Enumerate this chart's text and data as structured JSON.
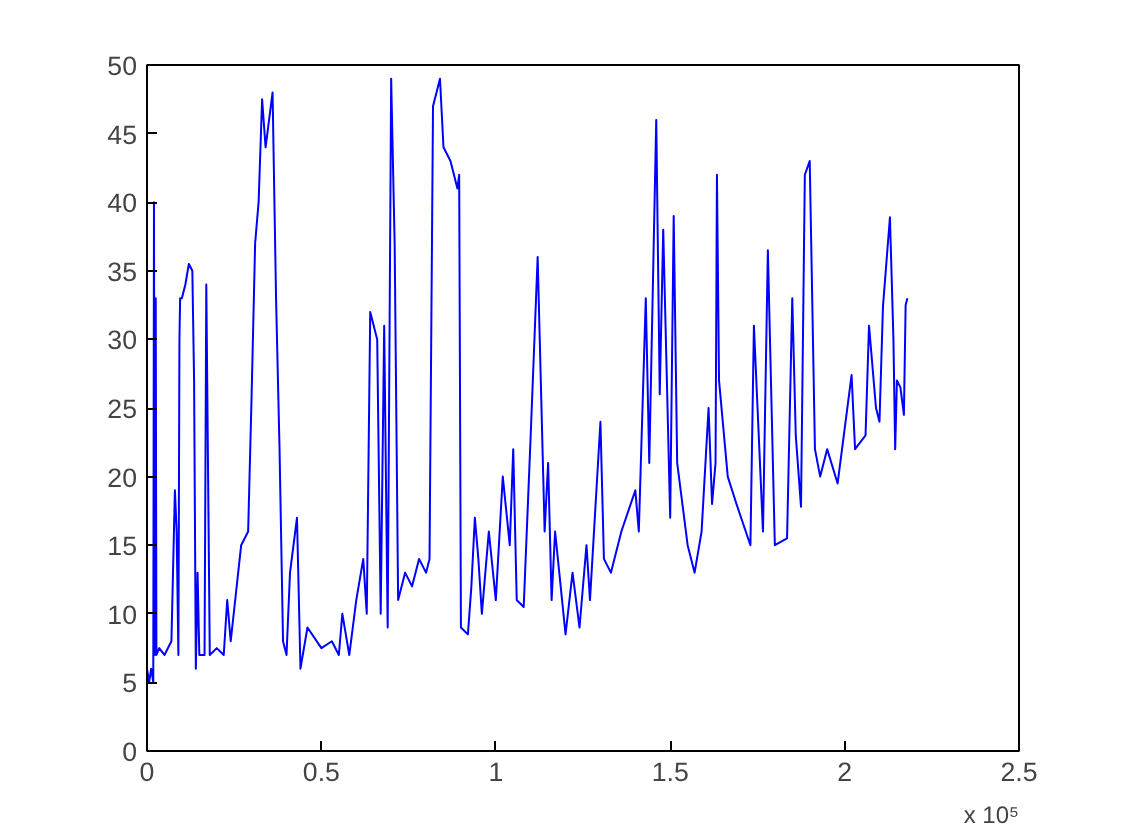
{
  "chart_data": {
    "type": "line",
    "xlim": [
      0,
      2.5
    ],
    "ylim": [
      0,
      50
    ],
    "xticks": [
      0,
      0.5,
      1,
      1.5,
      2,
      2.5
    ],
    "yticks": [
      0,
      5,
      10,
      15,
      20,
      25,
      30,
      35,
      40,
      45,
      50
    ],
    "grid": false,
    "line_style": "solid",
    "marker": "none",
    "annotations": [
      "x 10⁵"
    ],
    "series": [
      {
        "color": "#0000ff",
        "x": [
          0,
          0.006,
          0.012,
          0.018,
          0.02,
          0.022,
          0.025,
          0.027,
          0.035,
          0.05,
          0.07,
          0.08,
          0.085,
          0.09,
          0.093,
          0.095,
          0.1,
          0.11,
          0.12,
          0.13,
          0.135,
          0.14,
          0.145,
          0.15,
          0.165,
          0.17,
          0.18,
          0.2,
          0.22,
          0.23,
          0.24,
          0.27,
          0.29,
          0.3,
          0.31,
          0.32,
          0.33,
          0.34,
          0.36,
          0.37,
          0.38,
          0.39,
          0.4,
          0.41,
          0.43,
          0.44,
          0.46,
          0.5,
          0.53,
          0.55,
          0.56,
          0.58,
          0.6,
          0.62,
          0.63,
          0.64,
          0.66,
          0.67,
          0.68,
          0.69,
          0.7,
          0.71,
          0.72,
          0.74,
          0.76,
          0.78,
          0.8,
          0.81,
          0.82,
          0.84,
          0.85,
          0.87,
          0.89,
          0.895,
          0.9,
          0.92,
          0.93,
          0.94,
          0.95,
          0.96,
          0.98,
          1.0,
          1.02,
          1.04,
          1.05,
          1.06,
          1.08,
          1.1,
          1.12,
          1.13,
          1.14,
          1.15,
          1.16,
          1.17,
          1.2,
          1.22,
          1.24,
          1.26,
          1.27,
          1.3,
          1.31,
          1.33,
          1.36,
          1.4,
          1.41,
          1.43,
          1.44,
          1.46,
          1.47,
          1.48,
          1.5,
          1.51,
          1.52,
          1.55,
          1.57,
          1.59,
          1.61,
          1.62,
          1.63,
          1.634,
          1.64,
          1.665,
          1.69,
          1.73,
          1.74,
          1.766,
          1.78,
          1.8,
          1.835,
          1.85,
          1.86,
          1.875,
          1.886,
          1.9,
          1.915,
          1.93,
          1.95,
          1.98,
          2.02,
          2.03,
          2.06,
          2.07,
          2.09,
          2.1,
          2.11,
          2.13,
          2.14,
          2.145,
          2.15,
          2.16,
          2.17,
          2.175,
          2.18
        ],
        "values": [
          6,
          5,
          6,
          5,
          40,
          7,
          33,
          7,
          7.5,
          7,
          8,
          19,
          16,
          7,
          30,
          33,
          33,
          34,
          35.5,
          35,
          27,
          6,
          13,
          7,
          7,
          34,
          7,
          7.5,
          7,
          11,
          8,
          15,
          16,
          26,
          37,
          40,
          47.5,
          44,
          48,
          33,
          22,
          8,
          7,
          13,
          17,
          6,
          9,
          7.5,
          8,
          7,
          10,
          7,
          11,
          14,
          10,
          32,
          30,
          10,
          31,
          9,
          49,
          37,
          11,
          13,
          12,
          14,
          13,
          14,
          47,
          49,
          44,
          43,
          41,
          42,
          9,
          8.5,
          12,
          17,
          14,
          10,
          16,
          11,
          20,
          15,
          22,
          11,
          10.5,
          23,
          36,
          26,
          16,
          21,
          11,
          16,
          8.5,
          13,
          9,
          15,
          11,
          24,
          14,
          13,
          16,
          19,
          16,
          33,
          21,
          46,
          26,
          38,
          17,
          39,
          21,
          15,
          13,
          16,
          25,
          18,
          21,
          42,
          27,
          20,
          18,
          15,
          31,
          16,
          36.5,
          15,
          15.5,
          33,
          23,
          17.8,
          42,
          43,
          22,
          20,
          22,
          19.5,
          27.4,
          22,
          23,
          31,
          25,
          24,
          32.4,
          38.9,
          30,
          22,
          27,
          26.5,
          24.5,
          32.5,
          33
        ]
      }
    ]
  }
}
